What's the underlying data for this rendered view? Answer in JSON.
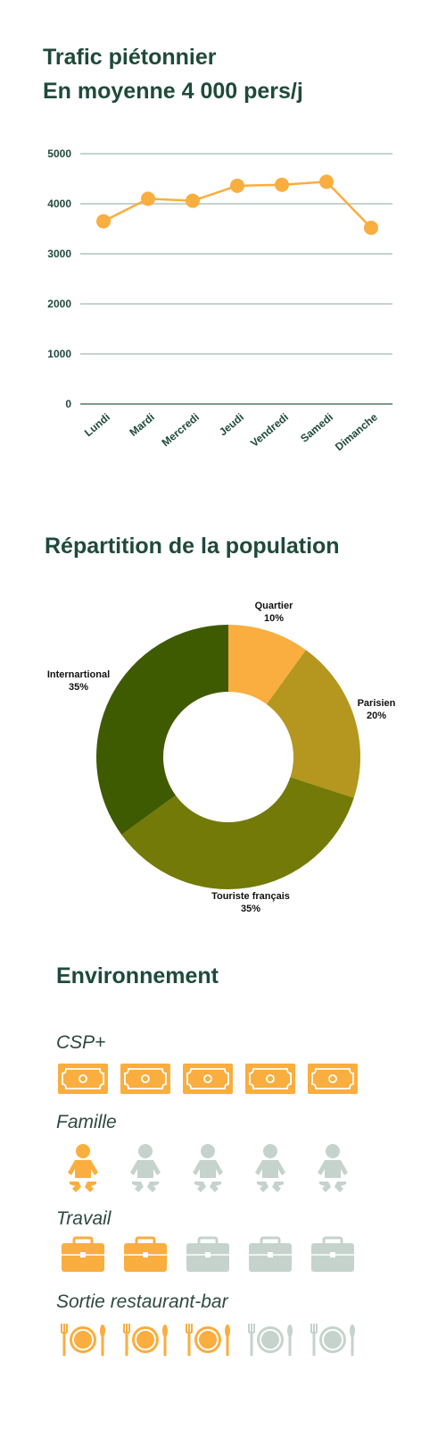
{
  "header": {
    "title": "Trafic piétonnier",
    "subtitle": "En moyenne 4 000 pers/j"
  },
  "chart_data": [
    {
      "type": "line",
      "title": "",
      "xlabel": "",
      "ylabel": "",
      "categories": [
        "Lundi",
        "Mardi",
        "Mercredi",
        "Jeudi",
        "Vendredi",
        "Samedi",
        "Dimanche"
      ],
      "values": [
        3650,
        4100,
        4060,
        4360,
        4380,
        4440,
        3520
      ],
      "ylim": [
        0,
        5000
      ],
      "yticks": [
        0,
        1000,
        2000,
        3000,
        4000,
        5000
      ],
      "grid": true,
      "color": "#f9ae3f"
    },
    {
      "type": "pie",
      "title": "Répartition de la population",
      "donut": true,
      "slices": [
        {
          "label": "Quartier",
          "value": 10,
          "pct": "10%",
          "color": "#f9ae3f"
        },
        {
          "label": "Parisien",
          "value": 20,
          "pct": "20%",
          "color": "#b5961f"
        },
        {
          "label": "Touriste français",
          "value": 35,
          "pct": "35%",
          "color": "#737a07"
        },
        {
          "label": "Internartional",
          "value": 35,
          "pct": "35%",
          "color": "#3f5b02"
        }
      ]
    }
  ],
  "environment": {
    "title": "Environnement",
    "active_color": "#f9ae3f",
    "inactive_color": "#c5d3cc",
    "sections": [
      {
        "label": "CSP+",
        "icon": "money-bill-icon",
        "active": 5,
        "total": 5
      },
      {
        "label": "Famille",
        "icon": "baby-icon",
        "active": 1,
        "total": 5
      },
      {
        "label": "Travail",
        "icon": "briefcase-icon",
        "active": 2,
        "total": 5
      },
      {
        "label": "Sortie restaurant-bar",
        "icon": "dining-plate-icon",
        "active": 3,
        "total": 5
      }
    ]
  }
}
